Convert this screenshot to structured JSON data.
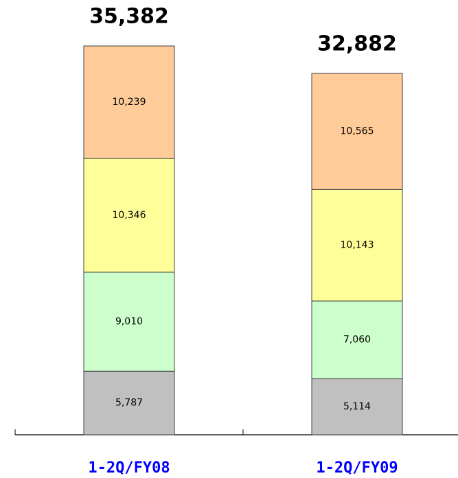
{
  "chart_data": {
    "type": "stacked_bar",
    "categories": [
      "1-2Q/FY08",
      "1-2Q/FY09"
    ],
    "totals": [
      35382,
      32882
    ],
    "total_labels": [
      "35,382",
      "32,882"
    ],
    "series": [
      {
        "color": "#c0c0c0",
        "values": [
          5787,
          5114
        ],
        "value_labels": [
          "5,787",
          "5,114"
        ]
      },
      {
        "color": "#ccffcc",
        "values": [
          9010,
          7060
        ],
        "value_labels": [
          "9,010",
          "7,060"
        ]
      },
      {
        "color": "#ffff99",
        "values": [
          10346,
          10143
        ],
        "value_labels": [
          "10,346",
          "10,143"
        ]
      },
      {
        "color": "#ffcc99",
        "values": [
          10239,
          10565
        ],
        "value_labels": [
          "10,239",
          "10,565"
        ]
      }
    ]
  }
}
